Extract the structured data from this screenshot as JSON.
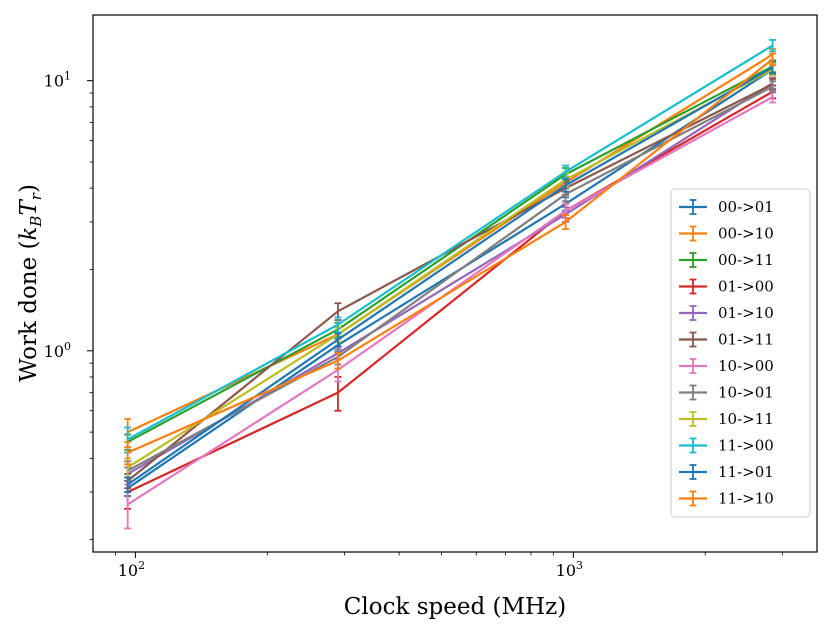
{
  "chart_data": {
    "type": "line",
    "title": "",
    "xlabel": "Clock speed (MHz)",
    "ylabel_text": "Work done (",
    "ylabel_k": "k",
    "ylabel_ksub": "B",
    "ylabel_T": "T",
    "ylabel_Tsub": "r",
    "ylabel_close": ")",
    "xscale": "log",
    "yscale": "log",
    "xlim": [
      80,
      3600
    ],
    "ylim": [
      0.18,
      17.5
    ],
    "x_ticks": [
      {
        "base": "10",
        "exp": "2",
        "value": 100
      },
      {
        "base": "10",
        "exp": "3",
        "value": 1000
      }
    ],
    "y_ticks": [
      {
        "base": "10",
        "exp": "0",
        "value": 1
      },
      {
        "base": "10",
        "exp": "1",
        "value": 10
      }
    ],
    "legend_position": "lower-right",
    "x": [
      96,
      290,
      960,
      2850
    ],
    "series": [
      {
        "name": "00->01",
        "color": "#1f77b4",
        "values": [
          0.31,
          1.05,
          3.5,
          11.0
        ],
        "errors": [
          0.02,
          0.06,
          0.2,
          0.5
        ]
      },
      {
        "name": "00->10",
        "color": "#ff7f0e",
        "values": [
          0.5,
          1.15,
          4.2,
          12.5
        ],
        "errors": [
          0.06,
          0.07,
          0.22,
          0.6
        ]
      },
      {
        "name": "00->11",
        "color": "#2ca02c",
        "values": [
          0.46,
          1.2,
          4.5,
          11.3
        ],
        "errors": [
          0.03,
          0.07,
          0.25,
          0.55
        ]
      },
      {
        "name": "01->00",
        "color": "#d62728",
        "values": [
          0.3,
          0.7,
          3.3,
          9.1
        ],
        "errors": [
          0.04,
          0.1,
          0.2,
          0.5
        ]
      },
      {
        "name": "01->10",
        "color": "#9467bd",
        "values": [
          0.35,
          0.98,
          3.2,
          9.8
        ],
        "errors": [
          0.02,
          0.05,
          0.2,
          0.45
        ]
      },
      {
        "name": "01->11",
        "color": "#8c564b",
        "values": [
          0.33,
          1.4,
          4.0,
          9.7
        ],
        "errors": [
          0.02,
          0.1,
          0.22,
          0.45
        ]
      },
      {
        "name": "10->00",
        "color": "#e377c2",
        "values": [
          0.27,
          0.85,
          3.3,
          8.7
        ],
        "errors": [
          0.05,
          0.08,
          0.2,
          0.4
        ]
      },
      {
        "name": "10->01",
        "color": "#7f7f7f",
        "values": [
          0.36,
          0.95,
          3.8,
          9.5
        ],
        "errors": [
          0.03,
          0.06,
          0.22,
          0.45
        ]
      },
      {
        "name": "10->11",
        "color": "#bcbd22",
        "values": [
          0.37,
          1.15,
          4.3,
          11.0
        ],
        "errors": [
          0.03,
          0.07,
          0.25,
          0.55
        ]
      },
      {
        "name": "11->00",
        "color": "#17becf",
        "values": [
          0.47,
          1.25,
          4.6,
          13.5
        ],
        "errors": [
          0.05,
          0.08,
          0.25,
          0.65
        ]
      },
      {
        "name": "11->01",
        "color": "#1f77b4",
        "values": [
          0.32,
          1.1,
          4.1,
          11.2
        ],
        "errors": [
          0.02,
          0.06,
          0.22,
          0.55
        ]
      },
      {
        "name": "11->10",
        "color": "#ff7f0e",
        "values": [
          0.42,
          0.92,
          3.0,
          12.0
        ],
        "errors": [
          0.04,
          0.06,
          0.18,
          0.6
        ]
      }
    ]
  }
}
